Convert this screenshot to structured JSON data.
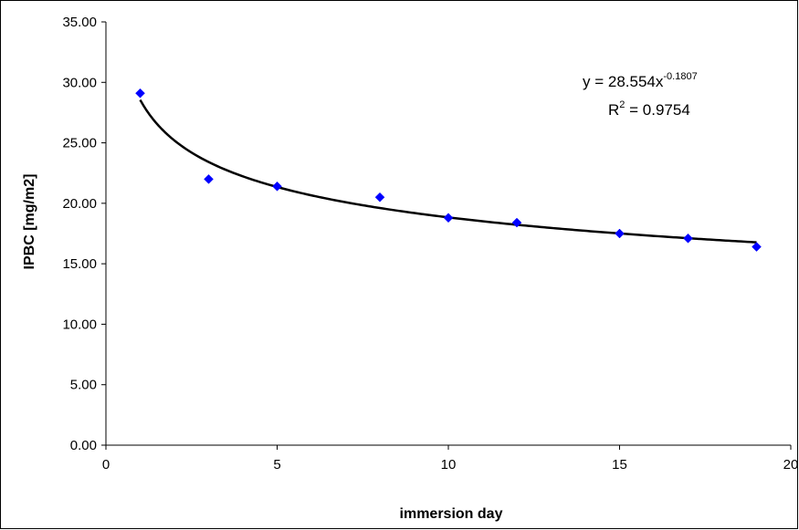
{
  "chart_data": {
    "type": "scatter",
    "xlabel": "immersion day",
    "ylabel": "IPBC [mg/m2]",
    "xlim": [
      0,
      20
    ],
    "ylim": [
      0,
      35
    ],
    "x_ticks": [
      "0",
      "5",
      "10",
      "15",
      "20"
    ],
    "y_ticks": [
      "0.00",
      "5.00",
      "10.00",
      "15.00",
      "20.00",
      "25.00",
      "30.00",
      "35.00"
    ],
    "grid": false,
    "colors": {
      "points": "#0000ff",
      "trendline": "#000000"
    },
    "series": [
      {
        "marker": "diamond",
        "x": [
          1,
          3,
          5,
          8,
          10,
          12,
          15,
          17,
          19
        ],
        "y": [
          29.1,
          22.0,
          21.4,
          20.5,
          18.8,
          18.4,
          17.5,
          17.1,
          16.4
        ]
      }
    ],
    "trendline": {
      "type": "power",
      "coefficient": 28.554,
      "exponent": -0.1807,
      "x_range": [
        1,
        19
      ],
      "equation_prefix": "y = 28.554x",
      "equation_exponent": "-0.1807",
      "r2_prefix": "R",
      "r2_exponent": "2",
      "r2_suffix": " = 0.9754"
    }
  }
}
